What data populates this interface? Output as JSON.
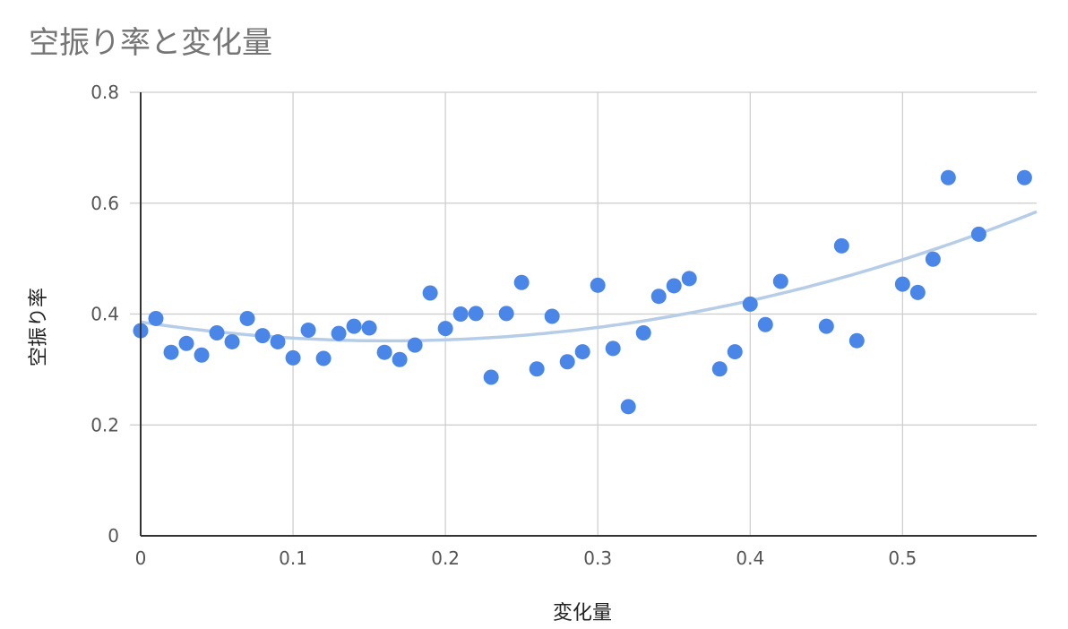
{
  "chart_data": {
    "type": "scatter",
    "title": "空振り率と変化量",
    "xlabel": "変化量",
    "ylabel": "空振り率",
    "xlim": [
      0,
      0.588
    ],
    "ylim": [
      0,
      0.8
    ],
    "xticks": [
      "0",
      "0.1",
      "0.2",
      "0.3",
      "0.4",
      "0.5"
    ],
    "yticks": [
      "0",
      "0.2",
      "0.4",
      "0.6",
      "0.8"
    ],
    "grid": true,
    "legend": "none",
    "colors": {
      "points": "#4a86e8",
      "trendline": "#b6cde8",
      "grid": "#cccccc",
      "axis": "#333333"
    },
    "series": [
      {
        "points": [
          [
            0.0,
            0.37
          ],
          [
            0.01,
            0.392
          ],
          [
            0.02,
            0.331
          ],
          [
            0.03,
            0.347
          ],
          [
            0.04,
            0.326
          ],
          [
            0.05,
            0.366
          ],
          [
            0.06,
            0.35
          ],
          [
            0.07,
            0.392
          ],
          [
            0.08,
            0.361
          ],
          [
            0.09,
            0.35
          ],
          [
            0.1,
            0.321
          ],
          [
            0.11,
            0.371
          ],
          [
            0.12,
            0.32
          ],
          [
            0.13,
            0.365
          ],
          [
            0.14,
            0.378
          ],
          [
            0.15,
            0.375
          ],
          [
            0.16,
            0.331
          ],
          [
            0.17,
            0.318
          ],
          [
            0.18,
            0.344
          ],
          [
            0.19,
            0.438
          ],
          [
            0.2,
            0.374
          ],
          [
            0.21,
            0.4
          ],
          [
            0.22,
            0.401
          ],
          [
            0.23,
            0.286
          ],
          [
            0.24,
            0.401
          ],
          [
            0.25,
            0.457
          ],
          [
            0.26,
            0.301
          ],
          [
            0.27,
            0.396
          ],
          [
            0.28,
            0.314
          ],
          [
            0.29,
            0.332
          ],
          [
            0.3,
            0.452
          ],
          [
            0.31,
            0.338
          ],
          [
            0.32,
            0.233
          ],
          [
            0.33,
            0.366
          ],
          [
            0.34,
            0.432
          ],
          [
            0.35,
            0.451
          ],
          [
            0.36,
            0.464
          ],
          [
            0.38,
            0.301
          ],
          [
            0.39,
            0.332
          ],
          [
            0.4,
            0.418
          ],
          [
            0.41,
            0.381
          ],
          [
            0.42,
            0.459
          ],
          [
            0.45,
            0.378
          ],
          [
            0.46,
            0.523
          ],
          [
            0.47,
            0.352
          ],
          [
            0.5,
            0.454
          ],
          [
            0.51,
            0.439
          ],
          [
            0.52,
            0.499
          ],
          [
            0.53,
            0.646
          ],
          [
            0.55,
            0.544
          ],
          [
            0.58,
            0.646
          ]
        ]
      }
    ],
    "trendline": {
      "type": "polynomial",
      "degree": 2,
      "coefficients": [
        0.3857,
        -0.4188,
        1.2872
      ]
    }
  }
}
